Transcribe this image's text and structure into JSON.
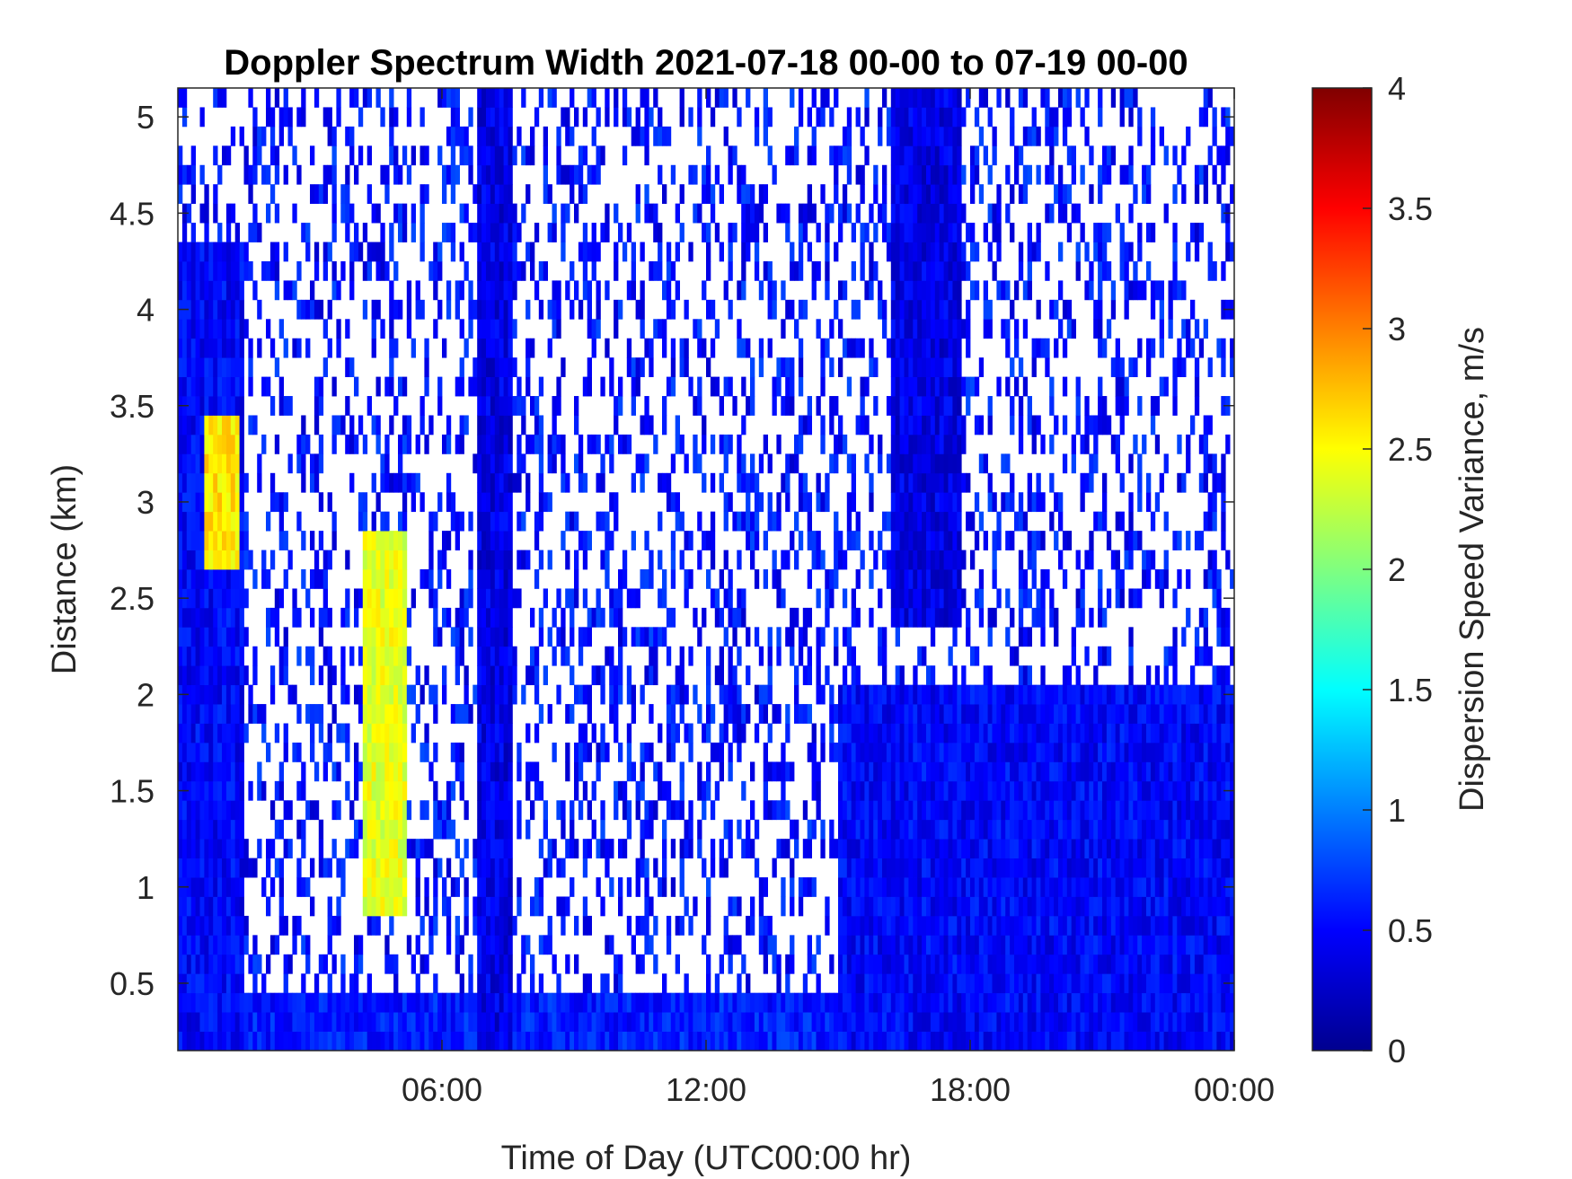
{
  "chart_data": {
    "type": "heatmap",
    "title": "Doppler Spectrum Width 2021-07-18 00-00 to 07-19 00-00",
    "xlabel": "Time of Day (UTC00:00 hr)",
    "ylabel": "Distance (km)",
    "colorbar_label": "Dispersion Speed Variance, m/s",
    "colormap": "jet",
    "xlim": [
      0,
      24
    ],
    "ylim": [
      0.15,
      5.15
    ],
    "clim": [
      0,
      4
    ],
    "x_ticks": [
      6,
      12,
      18,
      24
    ],
    "x_tick_labels": [
      "06:00",
      "12:00",
      "18:00",
      "00:00"
    ],
    "y_ticks": [
      0.5,
      1,
      1.5,
      2,
      2.5,
      3,
      3.5,
      4,
      4.5,
      5
    ],
    "y_tick_labels": [
      "0.5",
      "1",
      "1.5",
      "2",
      "2.5",
      "3",
      "3.5",
      "4",
      "4.5",
      "5"
    ],
    "colorbar_ticks": [
      0,
      0.5,
      1,
      1.5,
      2,
      2.5,
      3,
      3.5,
      4
    ],
    "colorbar_tick_labels": [
      "0",
      "0.5",
      "1",
      "1.5",
      "2",
      "2.5",
      "3",
      "3.5",
      "4"
    ],
    "features": [
      {
        "region": "continuous echo",
        "time_hr": [
          0,
          24
        ],
        "distance_km": [
          0.15,
          0.45
        ],
        "value_ms": 0.6
      },
      {
        "region": "continuous echo",
        "time_hr": [
          0,
          1.5
        ],
        "distance_km": [
          0.15,
          4.3
        ],
        "value_ms": 0.5
      },
      {
        "region": "continuous echo",
        "time_hr": [
          15,
          24
        ],
        "distance_km": [
          0.15,
          2.0
        ],
        "value_ms": 0.5
      },
      {
        "region": "continuous echo",
        "time_hr": [
          6.8,
          7.6
        ],
        "distance_km": [
          0.15,
          5.15
        ],
        "value_ms": 0.4
      },
      {
        "region": "continuous echo",
        "time_hr": [
          16.2,
          17.8
        ],
        "distance_km": [
          2.3,
          5.15
        ],
        "value_ms": 0.4
      },
      {
        "region": "enhanced width",
        "time_hr": [
          0.6,
          1.4
        ],
        "distance_km": [
          2.6,
          3.4
        ],
        "value_ms": 2.6
      },
      {
        "region": "enhanced width",
        "time_hr": [
          4.2,
          5.2
        ],
        "distance_km": [
          0.8,
          2.8
        ],
        "value_ms": 2.4
      }
    ]
  }
}
